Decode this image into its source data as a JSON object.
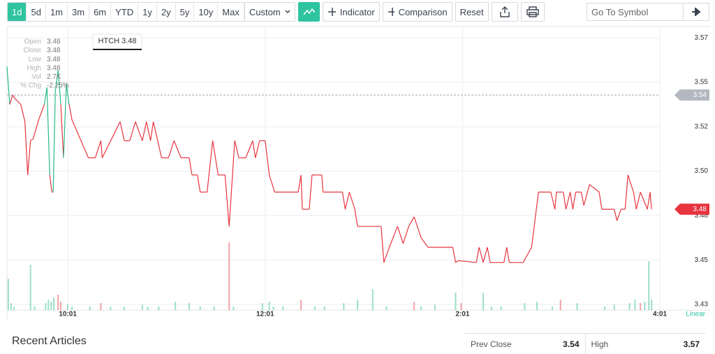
{
  "toolbar": {
    "ranges": [
      "1d",
      "5d",
      "1m",
      "3m",
      "6m",
      "YTD",
      "1y",
      "2y",
      "5y",
      "10y",
      "Max"
    ],
    "custom": "Custom",
    "indicator": "Indicator",
    "comparison": "Comparison",
    "reset": "Reset",
    "search_placeholder": "Go To Symbol"
  },
  "chart_data": {
    "type": "line",
    "symbol_label": "HTCH 3.48",
    "scale_label": "Linear",
    "info": [
      {
        "label": "Open",
        "value": "3.48"
      },
      {
        "label": "Close",
        "value": "3.48"
      },
      {
        "label": "Low",
        "value": "3.48"
      },
      {
        "label": "High",
        "value": "3.48"
      },
      {
        "label": "Vol",
        "value": "2.7K"
      },
      {
        "label": "% Chg",
        "value": "-2.25%"
      }
    ],
    "prev_close": 3.54,
    "last_price": 3.48,
    "prev_close_color": "#b3b7bf",
    "last_price_color": "#e8343f",
    "up_color": "#26b98a",
    "down_color": "#e8343f",
    "xlim": [
      564,
      961
    ],
    "xticks": [
      {
        "value": 601,
        "label": "10:01"
      },
      {
        "value": 721,
        "label": "12:01"
      },
      {
        "value": 841,
        "label": "2:01"
      },
      {
        "value": 961,
        "label": "4:01"
      }
    ],
    "ylim": [
      3.427,
      3.576
    ],
    "yticks": [
      {
        "value": 3.43,
        "label": "3.43"
      },
      {
        "value": 3.4533,
        "label": "3.45"
      },
      {
        "value": 3.4767,
        "label": "3.48"
      },
      {
        "value": 3.5,
        "label": "3.50"
      },
      {
        "value": 3.5233,
        "label": "3.52"
      },
      {
        "value": 3.5467,
        "label": "3.55"
      },
      {
        "value": 3.57,
        "label": "3.57"
      }
    ],
    "grid": true,
    "x": [
      564.0,
      565.7,
      567.4,
      569.0,
      572.4,
      574.9,
      576.6,
      578.3,
      579.9,
      583.3,
      586.7,
      588.3,
      590.0,
      591.3,
      592.1,
      593.4,
      595.1,
      596.7,
      598.4,
      600.1,
      601.8,
      603.5,
      606.0,
      613.5,
      617.7,
      621.1,
      621.9,
      632.8,
      635.3,
      638.7,
      642.1,
      646.3,
      648.8,
      651.3,
      653.0,
      658.0,
      662.2,
      665.6,
      669.8,
      674.8,
      676.5,
      679.8,
      681.5,
      685.7,
      689.1,
      692.4,
      696.6,
      699.1,
      702.5,
      705.0,
      709.2,
      713.4,
      715.1,
      717.6,
      721.0,
      723.5,
      726.8,
      741.1,
      742.8,
      743.6,
      747.8,
      749.5,
      755.4,
      756.2,
      768.0,
      769.7,
      772.2,
      775.5,
      777.2,
      779.7,
      791.5,
      793.2,
      796.5,
      801.5,
      804.9,
      808.3,
      811.6,
      815.8,
      820.0,
      835.1,
      836.8,
      838.5,
      849.4,
      851.1,
      853.6,
      856.1,
      857.8,
      866.2,
      867.9,
      869.5,
      877.9,
      883.0,
      884.6,
      887.2,
      894.7,
      897.2,
      898.1,
      902.3,
      903.9,
      906.5,
      908.1,
      909.8,
      913.2,
      914.8,
      918.2,
      924.1,
      925.7,
      933.3,
      934.9,
      937.4,
      939.9,
      941.6,
      945.0,
      946.7,
      949.2,
      953.4,
      955.1,
      955.9
    ],
    "series": [
      {
        "values": [
          3.555,
          3.535,
          3.54,
          3.538,
          3.535,
          3.526,
          3.498,
          3.516,
          3.517,
          3.527,
          3.535,
          3.544,
          3.498,
          3.489,
          3.489,
          3.542,
          3.553,
          3.535,
          3.507,
          3.546,
          3.535,
          3.527,
          3.522,
          3.507,
          3.507,
          3.516,
          3.507,
          3.526,
          3.516,
          3.516,
          3.526,
          3.516,
          3.526,
          3.516,
          3.526,
          3.507,
          3.507,
          3.516,
          3.507,
          3.507,
          3.498,
          3.498,
          3.489,
          3.489,
          3.516,
          3.498,
          3.498,
          3.471,
          3.516,
          3.507,
          3.507,
          3.516,
          3.507,
          3.516,
          3.516,
          3.498,
          3.489,
          3.489,
          3.498,
          3.48,
          3.48,
          3.498,
          3.498,
          3.489,
          3.489,
          3.48,
          3.489,
          3.48,
          3.471,
          3.471,
          3.471,
          3.452,
          3.46,
          3.471,
          3.462,
          3.471,
          3.476,
          3.465,
          3.46,
          3.46,
          3.452,
          3.453,
          3.452,
          3.46,
          3.452,
          3.46,
          3.452,
          3.452,
          3.46,
          3.452,
          3.452,
          3.46,
          3.471,
          3.489,
          3.489,
          3.48,
          3.489,
          3.489,
          3.48,
          3.489,
          3.48,
          3.489,
          3.489,
          3.482,
          3.493,
          3.489,
          3.48,
          3.48,
          3.474,
          3.48,
          3.48,
          3.498,
          3.489,
          3.48,
          3.489,
          3.48,
          3.489,
          3.48
        ]
      }
    ],
    "volume_up": {
      "x": [
        564.8,
        566.5,
        568.2,
        578.3,
        580.8,
        587.5,
        589.2,
        590.9,
        592.5,
        600.9,
        603.5,
        614.4,
        627.0,
        635.3,
        646.3,
        649.6,
        656.3,
        666.4,
        674.8,
        681.5,
        689.9,
        701.7,
        719.3,
        723.5,
        726.0,
        731.9,
        751.2,
        757.1,
        768.8,
        777.2,
        786.4,
        794.8,
        815.8,
        824.2,
        836.8,
        853.6,
        858.6,
        864.5,
        878.8,
        886.3,
        895.6,
        910.7,
        927.5,
        933.3,
        942.6,
        945.9,
        951.8,
        954.3,
        956.0
      ],
      "values": [
        1800,
        400,
        200,
        2600,
        200,
        400,
        600,
        480,
        720,
        320,
        200,
        200,
        200,
        200,
        320,
        200,
        200,
        480,
        400,
        200,
        200,
        200,
        400,
        480,
        200,
        200,
        200,
        200,
        400,
        600,
        1200,
        200,
        200,
        320,
        1000,
        1000,
        200,
        200,
        400,
        480,
        200,
        400,
        200,
        320,
        400,
        600,
        480,
        2800,
        600
      ]
    },
    "volume_down": {
      "x": [
        595.1,
        596.7,
        621.1,
        699.1,
        742.8,
        811.6,
        840.2,
        900.6,
        949.2
      ],
      "values": [
        880,
        480,
        400,
        3880,
        600,
        480,
        400,
        600,
        400
      ]
    }
  },
  "footer": {
    "recent_articles": "Recent Articles",
    "stats": [
      {
        "label": "Prev Close",
        "value": "3.54"
      },
      {
        "label": "High",
        "value": "3.57"
      }
    ]
  }
}
